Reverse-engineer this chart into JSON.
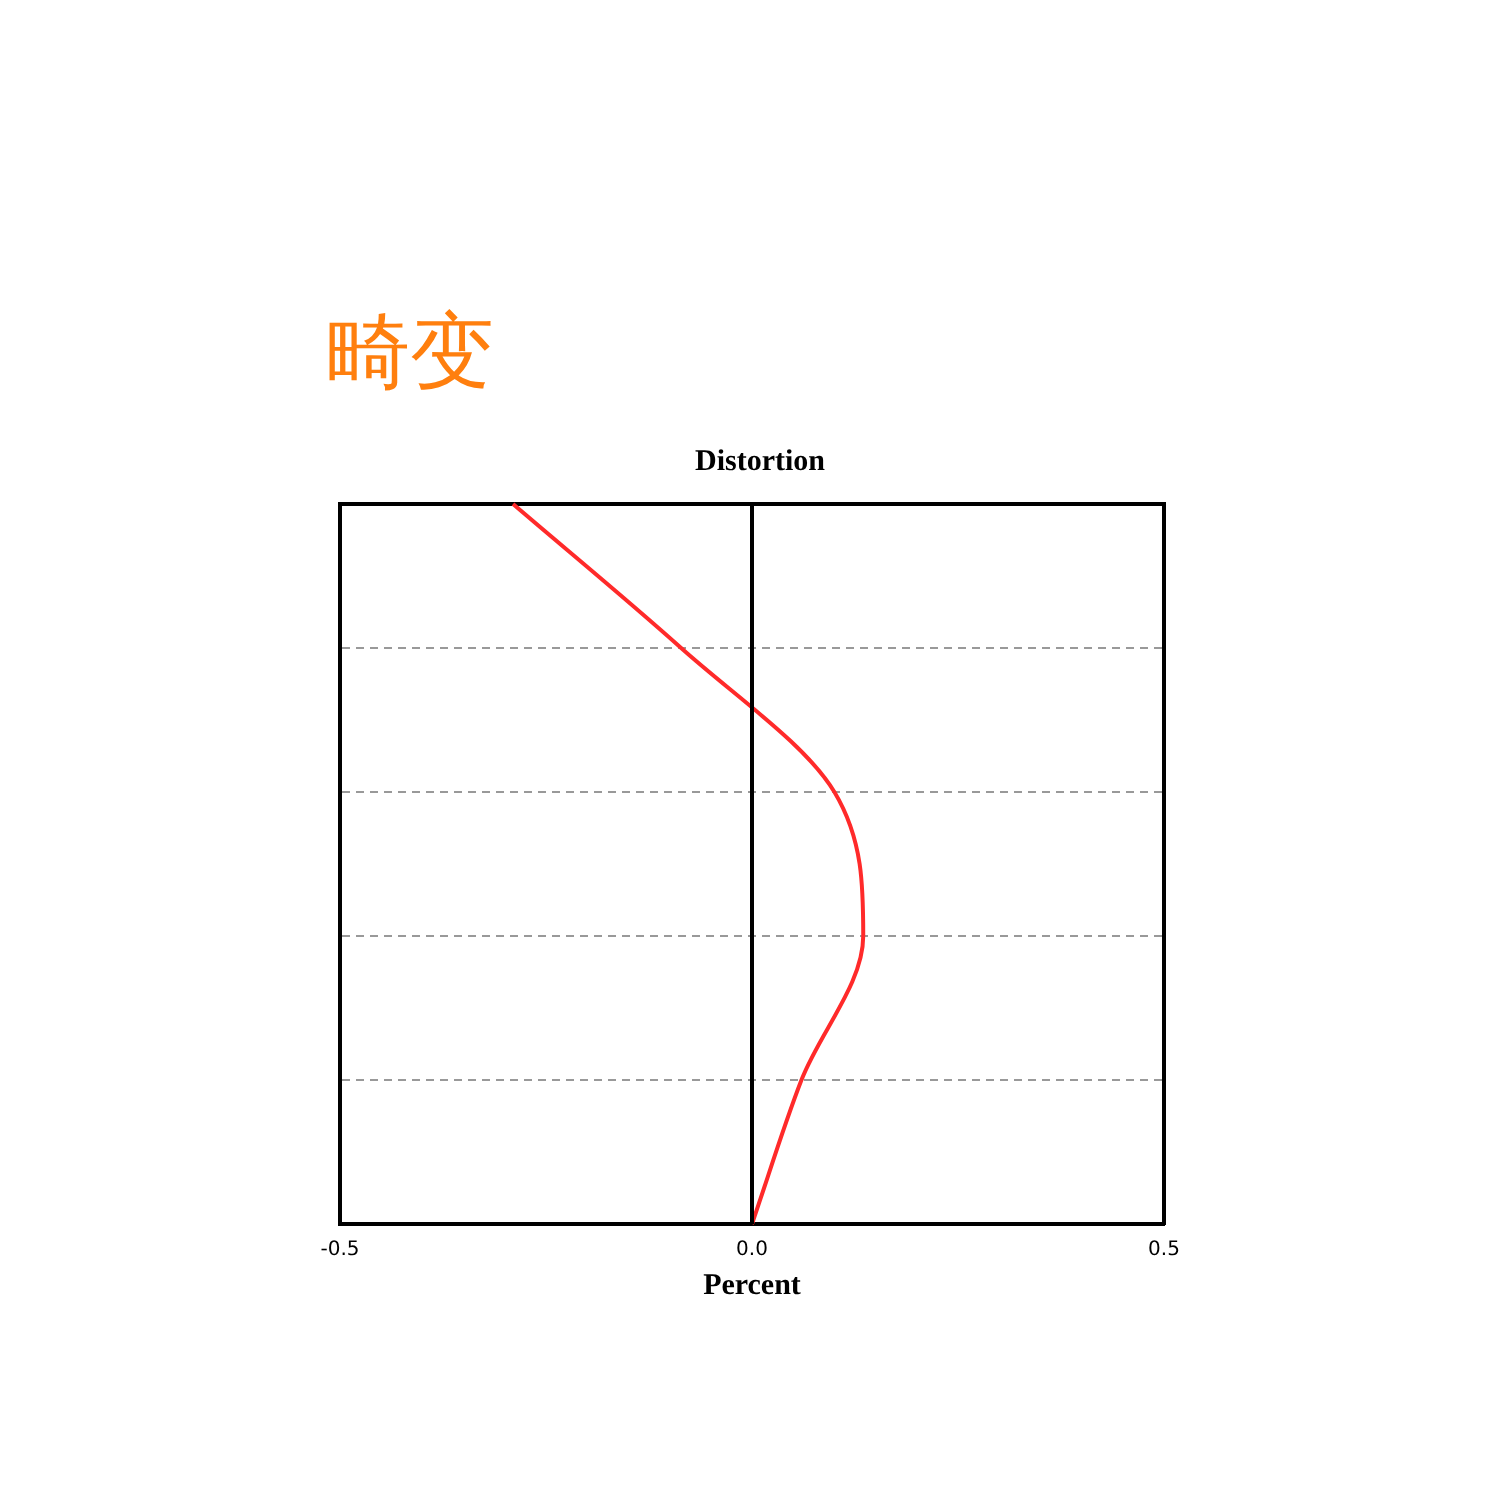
{
  "chart_data": {
    "type": "line",
    "orientation": "horizontal",
    "title": "畸变",
    "subtitle": "Distortion",
    "xlabel": "Percent",
    "categories": [
      null,
      null,
      null,
      null,
      null,
      null
    ],
    "series": [
      {
        "color": "#ff2a2a",
        "values": [
          -0.29,
          -0.086,
          0.1,
          0.135,
          0.06,
          0
        ]
      }
    ],
    "xlim": [
      -0.5,
      0.5
    ],
    "xticks": [
      -0.5,
      {
        "value": 0,
        "label": "0.0"
      },
      0.5
    ],
    "grid": "y",
    "tick_labels": "x",
    "marker": "none",
    "ref_lines": [
      {
        "axis": "x",
        "value": 0,
        "color": "#000000"
      }
    ]
  }
}
